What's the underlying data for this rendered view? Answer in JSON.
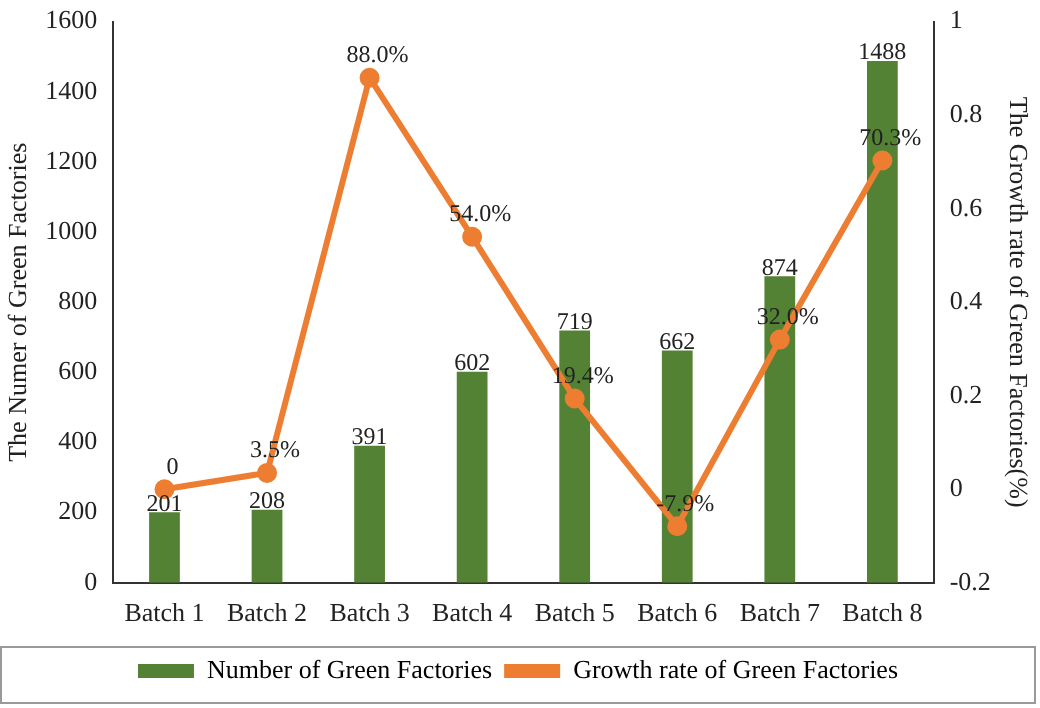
{
  "chart_data": {
    "type": "bar",
    "categories": [
      "Batch 1",
      "Batch 2",
      "Batch 3",
      "Batch 4",
      "Batch 5",
      "Batch 6",
      "Batch 7",
      "Batch 8"
    ],
    "ylabel": "The Numer of Green Factories",
    "y2label": "The Growth rate of Green Factories(%)",
    "series": [
      {
        "name": "Number of Green Factories",
        "color": "#548235",
        "values": [
          201,
          208,
          391,
          602,
          719,
          662,
          874,
          1488
        ],
        "value_labels": [
          "201",
          "208",
          "391",
          "602",
          "719",
          "662",
          "874",
          "1488"
        ]
      },
      {
        "name": "Growth rate of Green Factories",
        "type": "line",
        "axis": "y2",
        "color": "#ed7d31",
        "marker": "circle",
        "values": [
          0,
          0.035,
          0.88,
          0.54,
          0.194,
          -0.079,
          0.32,
          0.703
        ],
        "value_labels": [
          "0",
          "3.5%",
          "88.0%",
          "54.0%",
          "19.4%",
          "-7.9%",
          "32.0%",
          "70.3%"
        ]
      }
    ],
    "ylim": [
      0,
      1600
    ],
    "yticks": [
      0,
      200,
      400,
      600,
      800,
      1000,
      1200,
      1400,
      1600
    ],
    "y2lim": [
      -0.2,
      1
    ],
    "y2ticks": [
      -0.2,
      0,
      0.2,
      0.4,
      0.6,
      0.8,
      1
    ],
    "grid": false,
    "legend": "bottom"
  }
}
